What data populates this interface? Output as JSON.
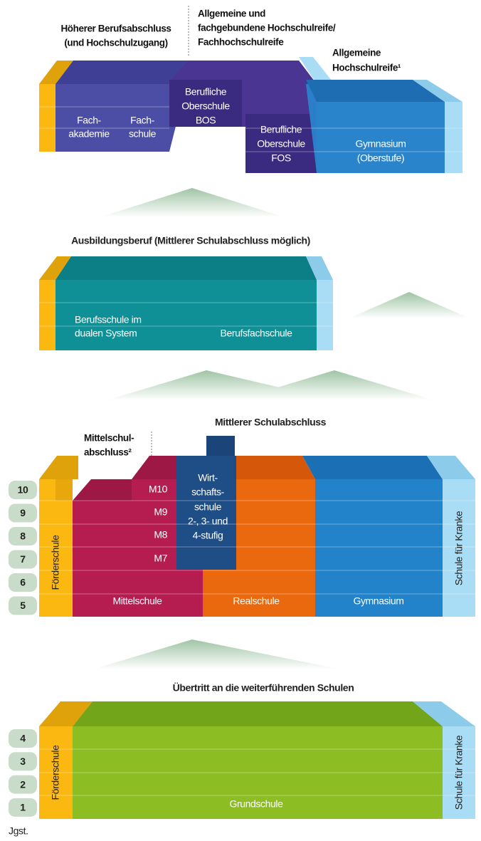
{
  "headings": {
    "higher_vocational": [
      "Höherer Berufsabschluss",
      "(und Hochschulzugang)"
    ],
    "university_entrance": [
      "Allgemeine und",
      "fachgebundene Hochschulreife/",
      "Fachhochschulreife"
    ],
    "general_entrance": [
      "Allgemeine",
      "Hochschulreife¹"
    ],
    "vocational_training": "Ausbildungsberuf (Mittlerer Schulabschluss möglich)",
    "intermediate": "Mittlerer Schulabschluss",
    "mittelschul": [
      "Mittelschul-",
      "abschluss²"
    ],
    "transfer": "Übertritt an die weiterführenden Schulen"
  },
  "tertiary": {
    "fachakademie": [
      "Fach-",
      "akademie"
    ],
    "fachschule": [
      "Fach-",
      "schule"
    ],
    "bos": [
      "Berufliche",
      "Oberschule",
      "BOS"
    ],
    "fos": [
      "Berufliche",
      "Oberschule",
      "FOS"
    ],
    "gymnasium_upper": [
      "Gymnasium",
      "(Oberstufe)"
    ]
  },
  "vocational": {
    "berufsschule": [
      "Berufsschule im",
      "dualen System"
    ],
    "berufsfachschule": "Berufsfachschule"
  },
  "secondary": {
    "grades": [
      "10",
      "9",
      "8",
      "7",
      "6",
      "5"
    ],
    "m_levels": [
      "M10",
      "M9",
      "M8",
      "M7"
    ],
    "wirtschaftsschule": [
      "Wirt-",
      "schafts-",
      "schule",
      "2-, 3- und",
      "4-stufig"
    ],
    "foerderschule": "Förderschule",
    "mittelschule": "Mittelschule",
    "realschule": "Realschule",
    "gymnasium": "Gymnasium",
    "schule_fuer_kranke": "Schule für Kranke"
  },
  "primary": {
    "grades": [
      "4",
      "3",
      "2",
      "1"
    ],
    "foerderschule": "Förderschule",
    "grundschule": "Grundschule",
    "schule_fuer_kranke": "Schule für Kranke"
  },
  "footer": "Jgst."
}
